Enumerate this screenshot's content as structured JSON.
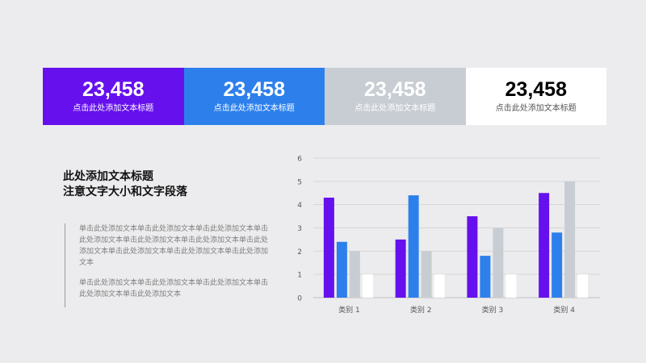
{
  "stats": [
    {
      "value": "23,458",
      "label": "点击此处添加文本标题",
      "color": "#6610ee"
    },
    {
      "value": "23,458",
      "label": "点击此处添加文本标题",
      "color": "#2d80ec"
    },
    {
      "value": "23,458",
      "label": "点击此处添加文本标题",
      "color": "#c8cdd3"
    },
    {
      "value": "23,458",
      "label": "点击此处添加文本标题",
      "color": "#ffffff"
    }
  ],
  "heading": {
    "line1": "此处添加文本标题",
    "line2": "注意文字大小和文字段落"
  },
  "body": {
    "paragraph1": "单击此处添加文本单击此处添加文本单击此处添加文本单击此处添加文本单击此处添加文本单击此处添加文本单击此处添加文本单击此处添加文本单击此处添加文本单击此处添加文本",
    "paragraph2": "单击此处添加文本单击此处添加文本单击此处添加文本单击此处添加文本单击此处添加文本"
  },
  "chart_data": {
    "type": "bar",
    "categories": [
      "类别 1",
      "类别 2",
      "类别 3",
      "类别 4"
    ],
    "series": [
      {
        "values": [
          4.3,
          2.5,
          3.5,
          4.5
        ],
        "color": "#6610ee"
      },
      {
        "values": [
          2.4,
          4.4,
          1.8,
          2.8
        ],
        "color": "#2d80ec"
      },
      {
        "values": [
          2.0,
          2.0,
          3.0,
          5.0
        ],
        "color": "#c8cdd3"
      },
      {
        "values": [
          1.0,
          1.0,
          1.0,
          1.0
        ],
        "color": "#ffffff"
      }
    ],
    "ylim": [
      0,
      6
    ],
    "yticks": [
      "0",
      "1",
      "2",
      "3",
      "4",
      "5",
      "6"
    ],
    "grid": true,
    "xlabel": "",
    "ylabel": ""
  }
}
